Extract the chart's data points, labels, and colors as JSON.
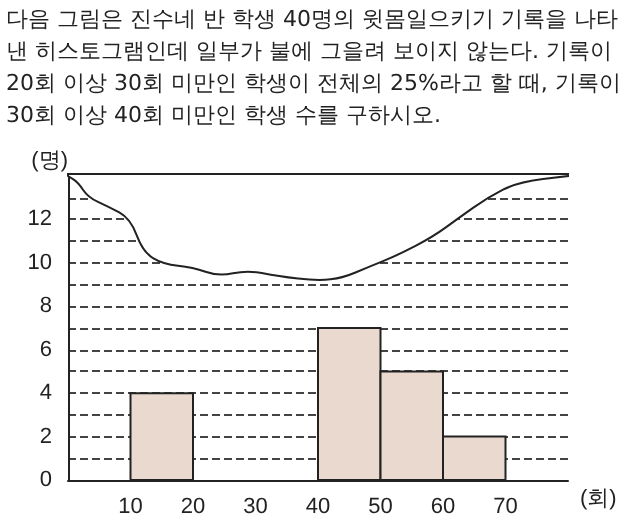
{
  "chart_data": {
    "type": "histogram",
    "title": "다음 그림은 진수네 반 학생 40명의 윗몸일으키기 기록을 나타낸 히스토그램인데 일부가 불에 그을려 보이지 않는다. 기록이 20회 이상 30회 미만인 학생이 전체의 25%라고 할 때, 기록이 30회 이상 40회 미만인 학생 수를 구하시오.",
    "xlabel": "(회)",
    "ylabel": "(명)",
    "bins": [
      10,
      20,
      30,
      40,
      50,
      60,
      70
    ],
    "values": [
      4,
      null,
      null,
      7,
      5,
      2
    ],
    "color": "#ead9cf",
    "xlim": [
      0,
      80
    ],
    "xticks": [
      10,
      20,
      30,
      40,
      50,
      60,
      70
    ],
    "ylim": [
      0,
      14
    ],
    "yticks": [
      0,
      {
        "value": 1,
        "label": null
      },
      2,
      {
        "value": 3,
        "label": null
      },
      4,
      {
        "value": 5,
        "label": null
      },
      6,
      {
        "value": 7,
        "label": null
      },
      8,
      {
        "value": 9,
        "label": null
      },
      10,
      {
        "value": 11,
        "label": null
      },
      12,
      {
        "value": 13,
        "label": null
      }
    ],
    "grid": "y",
    "line_style": "dashed"
  }
}
